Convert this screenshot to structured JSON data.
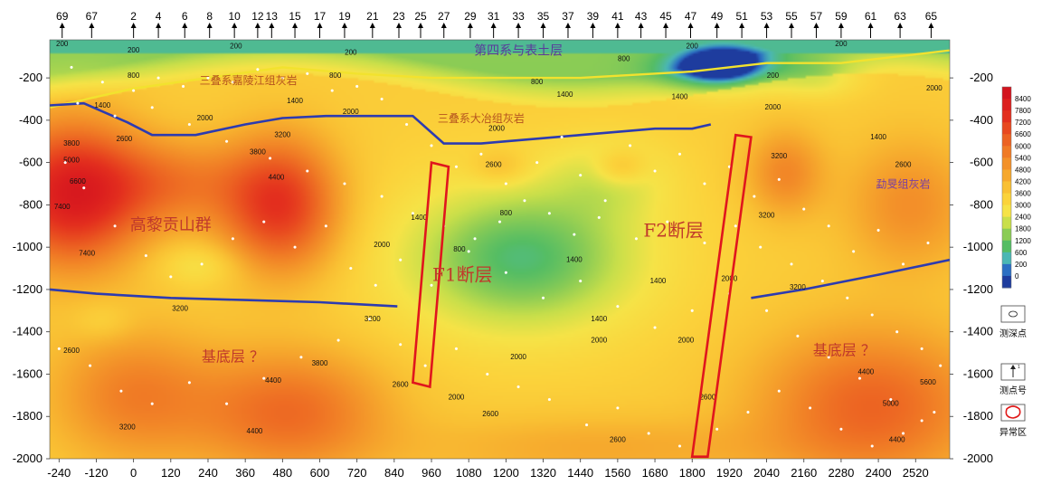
{
  "chart_data": {
    "type": "heatmap",
    "x_ticks": [
      -240,
      -120,
      0,
      120,
      240,
      360,
      480,
      600,
      720,
      840,
      960,
      1080,
      1200,
      1320,
      1440,
      1560,
      1680,
      1800,
      1920,
      2040,
      2160,
      2280,
      2400,
      2520
    ],
    "y_ticks": [
      -200,
      -400,
      -600,
      -800,
      -1000,
      -1200,
      -1400,
      -1600,
      -1800,
      -2000
    ],
    "xlim": [
      -270,
      2630
    ],
    "ylim": [
      -2000,
      -20
    ],
    "stations": [
      "69",
      "67",
      "2",
      "4",
      "6",
      "8",
      "10",
      "12",
      "13",
      "15",
      "17",
      "19",
      "21",
      "23",
      "25",
      "27",
      "29",
      "31",
      "33",
      "35",
      "37",
      "39",
      "41",
      "43",
      "45",
      "47",
      "49",
      "51",
      "53",
      "55",
      "57",
      "59",
      "61",
      "63",
      "65"
    ],
    "station_x": [
      -230,
      -135,
      0,
      80,
      165,
      245,
      325,
      400,
      445,
      520,
      600,
      680,
      770,
      855,
      925,
      1000,
      1085,
      1160,
      1240,
      1320,
      1400,
      1480,
      1560,
      1635,
      1715,
      1795,
      1880,
      1960,
      2040,
      2120,
      2200,
      2280,
      2375,
      2470,
      2570
    ],
    "colorbar": {
      "levels": [
        8400,
        7800,
        7200,
        6600,
        6000,
        5400,
        4800,
        4200,
        3600,
        3000,
        2400,
        1800,
        1200,
        600,
        200,
        0
      ],
      "colors": [
        "#d3141e",
        "#dc1f1e",
        "#e32f1e",
        "#e8481f",
        "#ec6222",
        "#f07a25",
        "#f39129",
        "#f6a82d",
        "#f9c033",
        "#fbd33b",
        "#f6e347",
        "#c9df4a",
        "#8bcc55",
        "#55bd64",
        "#4bb7b4",
        "#2c6fc3",
        "#1e3c9e"
      ]
    },
    "background": {
      "min": 0,
      "max": 8400,
      "field_model": "base 2400; near-surface low-resistivity layer; left high-resistivity body (Gaoli group); central low zone between F1 and F2; high basement at bottom-left and right"
    },
    "contour_labels": [
      {
        "text": "200",
        "x": -230,
        "y": -50
      },
      {
        "text": "200",
        "x": 0,
        "y": -80
      },
      {
        "text": "200",
        "x": 330,
        "y": -60
      },
      {
        "text": "200",
        "x": 700,
        "y": -90
      },
      {
        "text": "800",
        "x": 0,
        "y": -200
      },
      {
        "text": "800",
        "x": 650,
        "y": -200
      },
      {
        "text": "800",
        "x": 1300,
        "y": -230
      },
      {
        "text": "800",
        "x": 1580,
        "y": -120
      },
      {
        "text": "1400",
        "x": -100,
        "y": -340
      },
      {
        "text": "1400",
        "x": 520,
        "y": -320
      },
      {
        "text": "1400",
        "x": 1390,
        "y": -290
      },
      {
        "text": "1400",
        "x": 1760,
        "y": -300
      },
      {
        "text": "2000",
        "x": 230,
        "y": -400
      },
      {
        "text": "2000",
        "x": 700,
        "y": -370
      },
      {
        "text": "2000",
        "x": 1170,
        "y": -450
      },
      {
        "text": "2000",
        "x": 2060,
        "y": -350
      },
      {
        "text": "2600",
        "x": -30,
        "y": -500
      },
      {
        "text": "2600",
        "x": 1160,
        "y": -620
      },
      {
        "text": "3200",
        "x": 480,
        "y": -480
      },
      {
        "text": "3200",
        "x": 2080,
        "y": -580
      },
      {
        "text": "3800",
        "x": -200,
        "y": -520
      },
      {
        "text": "3800",
        "x": 400,
        "y": -560
      },
      {
        "text": "4400",
        "x": 460,
        "y": -680
      },
      {
        "text": "5000",
        "x": -200,
        "y": -600
      },
      {
        "text": "6600",
        "x": -180,
        "y": -700
      },
      {
        "text": "7400",
        "x": -230,
        "y": -820
      },
      {
        "text": "7400",
        "x": -150,
        "y": -1040
      },
      {
        "text": "1400",
        "x": 920,
        "y": -870
      },
      {
        "text": "1400",
        "x": 1420,
        "y": -1070
      },
      {
        "text": "1400",
        "x": 1500,
        "y": -1350
      },
      {
        "text": "1400",
        "x": 1690,
        "y": -1170
      },
      {
        "text": "800",
        "x": 1200,
        "y": -850
      },
      {
        "text": "800",
        "x": 1050,
        "y": -1020
      },
      {
        "text": "2000",
        "x": 800,
        "y": -1000
      },
      {
        "text": "2000",
        "x": 1240,
        "y": -1530
      },
      {
        "text": "2000",
        "x": 1500,
        "y": -1450
      },
      {
        "text": "2000",
        "x": 1780,
        "y": -1450
      },
      {
        "text": "2000",
        "x": 1920,
        "y": -1160
      },
      {
        "text": "2000",
        "x": 1040,
        "y": -1720
      },
      {
        "text": "2600",
        "x": 1150,
        "y": -1800
      },
      {
        "text": "2600",
        "x": 1560,
        "y": -1920
      },
      {
        "text": "2600",
        "x": 1850,
        "y": -1720
      },
      {
        "text": "2600",
        "x": 860,
        "y": -1660
      },
      {
        "text": "3200",
        "x": 150,
        "y": -1300
      },
      {
        "text": "3200",
        "x": -20,
        "y": -1860
      },
      {
        "text": "3200",
        "x": 770,
        "y": -1350
      },
      {
        "text": "3200",
        "x": 2140,
        "y": -1200
      },
      {
        "text": "3800",
        "x": 600,
        "y": -1560
      },
      {
        "text": "4400",
        "x": 450,
        "y": -1640
      },
      {
        "text": "4400",
        "x": 2360,
        "y": -1600
      },
      {
        "text": "5000",
        "x": 2440,
        "y": -1750
      },
      {
        "text": "5600",
        "x": 2560,
        "y": -1650
      },
      {
        "text": "4400",
        "x": 390,
        "y": -1880
      },
      {
        "text": "4400",
        "x": 2460,
        "y": -1920
      },
      {
        "text": "2600",
        "x": -200,
        "y": -1500
      },
      {
        "text": "3200",
        "x": 2040,
        "y": -860
      },
      {
        "text": "2600",
        "x": 2480,
        "y": -620
      },
      {
        "text": "2000",
        "x": 2580,
        "y": -260
      },
      {
        "text": "1400",
        "x": 2400,
        "y": -490
      },
      {
        "text": "200",
        "x": 1800,
        "y": -60
      },
      {
        "text": "200",
        "x": 2060,
        "y": -200
      },
      {
        "text": "200",
        "x": 2280,
        "y": -50
      }
    ],
    "lines": {
      "surface_boundary": [
        [
          -270,
          -340
        ],
        [
          -120,
          -290
        ],
        [
          0,
          -250
        ],
        [
          240,
          -200
        ],
        [
          480,
          -150
        ],
        [
          720,
          -180
        ],
        [
          960,
          -200
        ],
        [
          1200,
          -200
        ],
        [
          1440,
          -200
        ],
        [
          1800,
          -170
        ],
        [
          2040,
          -130
        ],
        [
          2280,
          -130
        ],
        [
          2630,
          -70
        ]
      ],
      "interface_1": [
        [
          -270,
          -330
        ],
        [
          -160,
          -320
        ],
        [
          -20,
          -410
        ],
        [
          60,
          -470
        ],
        [
          200,
          -470
        ],
        [
          360,
          -420
        ],
        [
          480,
          -390
        ],
        [
          620,
          -380
        ],
        [
          780,
          -380
        ],
        [
          900,
          -380
        ],
        [
          1000,
          -510
        ],
        [
          1120,
          -510
        ],
        [
          1200,
          -500
        ],
        [
          1440,
          -470
        ],
        [
          1680,
          -440
        ],
        [
          1800,
          -440
        ],
        [
          1860,
          -420
        ]
      ],
      "basement_left": [
        [
          -270,
          -1200
        ],
        [
          -120,
          -1220
        ],
        [
          120,
          -1240
        ],
        [
          360,
          -1250
        ],
        [
          600,
          -1260
        ],
        [
          850,
          -1280
        ]
      ],
      "basement_right": [
        [
          1990,
          -1240
        ],
        [
          2160,
          -1200
        ],
        [
          2400,
          -1130
        ],
        [
          2630,
          -1060
        ]
      ]
    },
    "fault_polygons": [
      {
        "name": "F1",
        "points": [
          [
            960,
            -600
          ],
          [
            1015,
            -620
          ],
          [
            955,
            -1660
          ],
          [
            900,
            -1640
          ]
        ]
      },
      {
        "name": "F2",
        "points": [
          [
            1940,
            -470
          ],
          [
            1990,
            -480
          ],
          [
            1850,
            -1990
          ],
          [
            1800,
            -1990
          ]
        ]
      }
    ],
    "annotations": [
      {
        "text": "第四系与表土层",
        "x": 1240,
        "y": -90,
        "size": 14,
        "color": "#5a3a9a"
      },
      {
        "text": "三叠系嘉陵江组灰岩",
        "x": 370,
        "y": -230,
        "size": 12,
        "color": "#b5531f"
      },
      {
        "text": "三叠系大冶组灰岩",
        "x": 1120,
        "y": -410,
        "size": 12,
        "color": "#b5531f"
      },
      {
        "text": "高黎贡山群",
        "x": 120,
        "y": -920,
        "size": 18,
        "color": "#c0392b"
      },
      {
        "text": "F1断层",
        "x": 1060,
        "y": -1160,
        "size": 20,
        "color": "#c0392b"
      },
      {
        "text": "F2断层",
        "x": 1740,
        "y": -950,
        "size": 20,
        "color": "#c0392b"
      },
      {
        "text": "勐旻组灰岩",
        "x": 2480,
        "y": -720,
        "size": 12,
        "color": "#7a3fa0"
      },
      {
        "text": "基底层 ？",
        "x": 320,
        "y": -1540,
        "size": 16,
        "color": "#c0392b"
      },
      {
        "text": "基底层 ？",
        "x": 2290,
        "y": -1510,
        "size": 16,
        "color": "#c0392b"
      }
    ],
    "survey_points": [
      [
        -200,
        -150
      ],
      [
        -100,
        -220
      ],
      [
        0,
        -260
      ],
      [
        80,
        -200
      ],
      [
        160,
        -240
      ],
      [
        240,
        -200
      ],
      [
        320,
        -220
      ],
      [
        400,
        -160
      ],
      [
        480,
        -200
      ],
      [
        560,
        -180
      ],
      [
        640,
        -260
      ],
      [
        720,
        -240
      ],
      [
        800,
        -300
      ],
      [
        880,
        -420
      ],
      [
        960,
        -520
      ],
      [
        1040,
        -620
      ],
      [
        1120,
        -560
      ],
      [
        1200,
        -700
      ],
      [
        1300,
        -600
      ],
      [
        1380,
        -480
      ],
      [
        1440,
        -660
      ],
      [
        1520,
        -780
      ],
      [
        1600,
        -520
      ],
      [
        1680,
        -640
      ],
      [
        1760,
        -560
      ],
      [
        1840,
        -700
      ],
      [
        1920,
        -620
      ],
      [
        2000,
        -760
      ],
      [
        2080,
        -680
      ],
      [
        2160,
        -820
      ],
      [
        2240,
        -900
      ],
      [
        2320,
        -1020
      ],
      [
        2400,
        -920
      ],
      [
        2480,
        -1080
      ],
      [
        2560,
        -980
      ],
      [
        -220,
        -600
      ],
      [
        -160,
        -720
      ],
      [
        -60,
        -900
      ],
      [
        40,
        -1040
      ],
      [
        120,
        -1140
      ],
      [
        220,
        -1080
      ],
      [
        320,
        -960
      ],
      [
        420,
        -880
      ],
      [
        520,
        -1000
      ],
      [
        620,
        -900
      ],
      [
        700,
        -1100
      ],
      [
        780,
        -1180
      ],
      [
        860,
        -1060
      ],
      [
        960,
        -1180
      ],
      [
        1080,
        -1020
      ],
      [
        1200,
        -1120
      ],
      [
        1320,
        -1240
      ],
      [
        1440,
        -1160
      ],
      [
        1560,
        -1280
      ],
      [
        1680,
        -1380
      ],
      [
        1800,
        -1300
      ],
      [
        1920,
        -1220
      ],
      [
        2040,
        -1300
      ],
      [
        2140,
        -1420
      ],
      [
        2240,
        -1520
      ],
      [
        2340,
        -1620
      ],
      [
        2440,
        -1720
      ],
      [
        2540,
        -1820
      ],
      [
        -240,
        -1480
      ],
      [
        -140,
        -1560
      ],
      [
        -40,
        -1680
      ],
      [
        60,
        -1740
      ],
      [
        180,
        -1640
      ],
      [
        300,
        -1740
      ],
      [
        420,
        -1620
      ],
      [
        540,
        -1520
      ],
      [
        660,
        -1440
      ],
      [
        760,
        -1340
      ],
      [
        860,
        -1460
      ],
      [
        940,
        -1560
      ],
      [
        1040,
        -1480
      ],
      [
        1140,
        -1600
      ],
      [
        1240,
        -1660
      ],
      [
        1340,
        -1720
      ],
      [
        1460,
        -1840
      ],
      [
        1560,
        -1760
      ],
      [
        1660,
        -1880
      ],
      [
        1760,
        -1940
      ],
      [
        1880,
        -1860
      ],
      [
        1980,
        -1780
      ],
      [
        2080,
        -1680
      ],
      [
        2180,
        -1760
      ],
      [
        2280,
        -1860
      ],
      [
        2380,
        -1940
      ],
      [
        2480,
        -1880
      ],
      [
        2580,
        -1780
      ],
      [
        -180,
        -320
      ],
      [
        -60,
        -380
      ],
      [
        60,
        -340
      ],
      [
        180,
        -420
      ],
      [
        300,
        -500
      ],
      [
        440,
        -580
      ],
      [
        560,
        -640
      ],
      [
        680,
        -700
      ],
      [
        800,
        -760
      ],
      [
        900,
        -840
      ],
      [
        1000,
        -900
      ],
      [
        1100,
        -960
      ],
      [
        1180,
        -880
      ],
      [
        1260,
        -780
      ],
      [
        1340,
        -840
      ],
      [
        1420,
        -940
      ],
      [
        1500,
        -860
      ],
      [
        1620,
        -960
      ],
      [
        1720,
        -880
      ],
      [
        1840,
        -980
      ],
      [
        1940,
        -900
      ],
      [
        2020,
        -1000
      ],
      [
        2120,
        -1080
      ],
      [
        2220,
        -1160
      ],
      [
        2300,
        -1240
      ],
      [
        2380,
        -1320
      ],
      [
        2460,
        -1400
      ],
      [
        2540,
        -1480
      ],
      [
        2600,
        -1560
      ]
    ]
  },
  "legend": {
    "sounding_point": "测深点",
    "station_number": "测点号",
    "anomaly_zone": "异常区"
  }
}
